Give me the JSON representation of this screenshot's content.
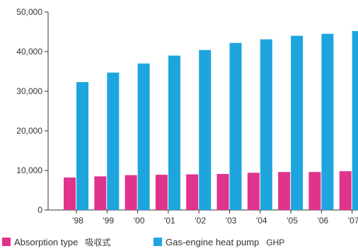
{
  "chart_data": {
    "type": "bar",
    "categories": [
      "'98",
      "'99",
      "'00",
      "'01",
      "'02",
      "'03",
      "'04",
      "'05",
      "'06",
      "'07"
    ],
    "series": [
      {
        "name": "Absorption type 吸収式",
        "color": "#e0338c",
        "values": [
          8200,
          8500,
          8800,
          8900,
          9000,
          9100,
          9400,
          9600,
          9600,
          9800
        ]
      },
      {
        "name": "Gas-engine heat pump GHP",
        "color": "#1ea5de",
        "values": [
          32300,
          34700,
          37000,
          39000,
          40400,
          42200,
          43100,
          44000,
          44500,
          45200
        ]
      }
    ],
    "ylim": [
      0,
      50000
    ],
    "yticks": [
      "0",
      "10,000",
      "20,000",
      "30,000",
      "40,000",
      "50,000"
    ],
    "ytick_values": [
      0,
      10000,
      20000,
      30000,
      40000,
      50000
    ],
    "grid": false,
    "legend": "bottom",
    "legend_items": [
      {
        "label": "Absorption type",
        "label2": "吸収式",
        "color": "#e0338c"
      },
      {
        "label": "Gas-engine heat pump",
        "label2": "GHP",
        "color": "#1ea5de"
      }
    ]
  }
}
